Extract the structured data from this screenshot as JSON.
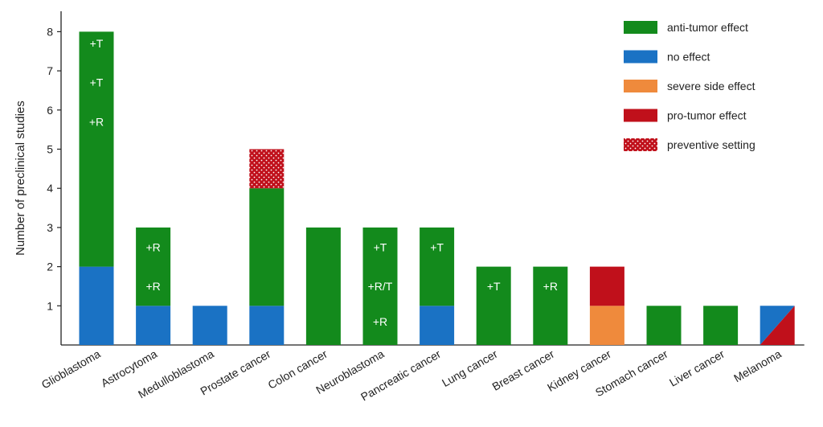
{
  "chart_data": {
    "type": "bar",
    "stacked": true,
    "ylabel": "Number of preclinical studies",
    "xlabel": "",
    "ylim": [
      0,
      8.5
    ],
    "yticks": [
      1,
      2,
      3,
      4,
      5,
      6,
      7,
      8
    ],
    "grid": false,
    "legend_position": "top-right",
    "categories": [
      "Glioblastoma",
      "Astrocytoma",
      "Medulloblastoma",
      "Prostate cancer",
      "Colon cancer",
      "Neuroblastoma",
      "Pancreatic cancer",
      "Lung cancer",
      "Breast cancer",
      "Kidney cancer",
      "Stomach cancer",
      "Liver cancer",
      "Melanoma"
    ],
    "legend": [
      {
        "key": "anti",
        "label": "anti-tumor effect",
        "color": "#138a1c",
        "pattern": false
      },
      {
        "key": "none",
        "label": "no effect",
        "color": "#1a72c4",
        "pattern": false
      },
      {
        "key": "severe",
        "label": "severe side effect",
        "color": "#ef8a3c",
        "pattern": false
      },
      {
        "key": "pro",
        "label": "pro-tumor effect",
        "color": "#c0101b",
        "pattern": false
      },
      {
        "key": "prev",
        "label": "preventive setting",
        "color": "#c0101b",
        "pattern": true
      }
    ],
    "bars": [
      {
        "category": "Glioblastoma",
        "segments": [
          {
            "key": "none",
            "value": 2
          },
          {
            "key": "anti",
            "value": 6
          }
        ],
        "annotations": [
          {
            "text": "+T",
            "y": 7.7
          },
          {
            "text": "+T",
            "y": 6.7
          },
          {
            "text": "+R",
            "y": 5.7
          }
        ]
      },
      {
        "category": "Astrocytoma",
        "segments": [
          {
            "key": "none",
            "value": 1
          },
          {
            "key": "anti",
            "value": 2
          }
        ],
        "annotations": [
          {
            "text": "+R",
            "y": 2.5
          },
          {
            "text": "+R",
            "y": 1.5
          }
        ]
      },
      {
        "category": "Medulloblastoma",
        "segments": [
          {
            "key": "none",
            "value": 1
          }
        ],
        "annotations": []
      },
      {
        "category": "Prostate cancer",
        "segments": [
          {
            "key": "none",
            "value": 1
          },
          {
            "key": "anti",
            "value": 3
          },
          {
            "key": "prev",
            "value": 1
          }
        ],
        "annotations": []
      },
      {
        "category": "Colon cancer",
        "segments": [
          {
            "key": "anti",
            "value": 3
          }
        ],
        "annotations": []
      },
      {
        "category": "Neuroblastoma",
        "segments": [
          {
            "key": "anti",
            "value": 3
          }
        ],
        "annotations": [
          {
            "text": "+T",
            "y": 2.5
          },
          {
            "text": "+R/T",
            "y": 1.5
          },
          {
            "text": "+R",
            "y": 0.6
          }
        ]
      },
      {
        "category": "Pancreatic cancer",
        "segments": [
          {
            "key": "none",
            "value": 1
          },
          {
            "key": "anti",
            "value": 2
          }
        ],
        "annotations": [
          {
            "text": "+T",
            "y": 2.5
          }
        ]
      },
      {
        "category": "Lung cancer",
        "segments": [
          {
            "key": "anti",
            "value": 2
          }
        ],
        "annotations": [
          {
            "text": "+T",
            "y": 1.5
          }
        ]
      },
      {
        "category": "Breast cancer",
        "segments": [
          {
            "key": "anti",
            "value": 2
          }
        ],
        "annotations": [
          {
            "text": "+R",
            "y": 1.5
          }
        ]
      },
      {
        "category": "Kidney cancer",
        "segments": [
          {
            "key": "severe",
            "value": 1
          },
          {
            "key": "pro",
            "value": 1
          }
        ],
        "annotations": []
      },
      {
        "category": "Stomach cancer",
        "segments": [
          {
            "key": "anti",
            "value": 1
          }
        ],
        "annotations": []
      },
      {
        "category": "Liver cancer",
        "segments": [
          {
            "key": "anti",
            "value": 1
          }
        ],
        "annotations": []
      },
      {
        "category": "Melanoma",
        "segments": [
          {
            "key": "split",
            "value": 1,
            "upper_left": "none",
            "lower_right": "pro"
          }
        ],
        "annotations": []
      }
    ]
  }
}
